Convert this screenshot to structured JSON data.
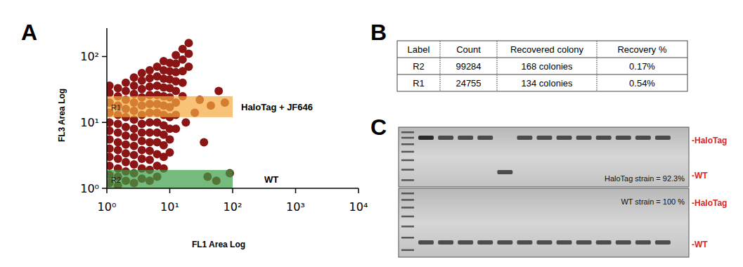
{
  "panel_labels": [
    "A",
    "B",
    "C"
  ],
  "chart_data": {
    "type": "scatter",
    "xlabel": "FL1 Area Log",
    "ylabel": "FL3 Area Log",
    "log": true,
    "color": "#8b1414",
    "xlim": [
      1,
      10000
    ],
    "ylim": [
      1,
      270
    ],
    "xticks": [
      {
        "value": 1,
        "label": "10⁰"
      },
      {
        "value": 10,
        "label": "10¹"
      },
      {
        "value": 100,
        "label": "10²"
      },
      {
        "value": 1000,
        "label": "10³"
      },
      {
        "value": 10000,
        "label": "10⁴"
      }
    ],
    "yticks": [
      {
        "value": 1,
        "label": "10⁰"
      },
      {
        "value": 10,
        "label": "10¹"
      },
      {
        "value": 100,
        "label": "10²"
      }
    ],
    "x": [
      1.1,
      1.1,
      1.1,
      1.1,
      1.1,
      1.1,
      1.1,
      1.1,
      1.1,
      1.1,
      1.1,
      1.1,
      1.5,
      1.5,
      1.5,
      1.5,
      1.5,
      1.5,
      1.5,
      1.5,
      1.5,
      1.5,
      1.5,
      1.5,
      2,
      2,
      2,
      2,
      2,
      2,
      2,
      2,
      2,
      2,
      2,
      2,
      2.7,
      2.7,
      2.7,
      2.7,
      2.7,
      2.7,
      2.7,
      2.7,
      2.7,
      2.7,
      2.7,
      2.7,
      2.7,
      3.6,
      3.6,
      3.6,
      3.6,
      3.6,
      3.6,
      3.6,
      3.6,
      3.6,
      3.6,
      3.6,
      3.6,
      3.6,
      4.8,
      4.8,
      4.8,
      4.8,
      4.8,
      4.8,
      4.8,
      4.8,
      4.8,
      4.8,
      4.8,
      4.8,
      4.8,
      6.3,
      6.3,
      6.3,
      6.3,
      6.3,
      6.3,
      6.3,
      6.3,
      6.3,
      6.3,
      6.3,
      6.3,
      8,
      8,
      8,
      8,
      8,
      8,
      8,
      8,
      8,
      8,
      8,
      8,
      10,
      10,
      10,
      10,
      10,
      10,
      10,
      10,
      10,
      10,
      12.5,
      12.5,
      12.5,
      12.5,
      12.5,
      12.5,
      12.5,
      12.5,
      16,
      16,
      16,
      16,
      16,
      20,
      20,
      20,
      30,
      45,
      60,
      75,
      25,
      40,
      55,
      90,
      35,
      18
    ],
    "y": [
      1.2,
      1.6,
      2.2,
      3,
      4,
      5.5,
      7.5,
      10,
      14,
      20,
      28,
      36,
      1.1,
      1.5,
      2,
      2.8,
      3.8,
      5,
      7,
      9.5,
      13,
      18,
      25,
      33,
      1.3,
      1.8,
      2.5,
      3.4,
      4.6,
      6.3,
      8.5,
      12,
      16,
      22,
      30,
      40,
      1.2,
      1.7,
      2.3,
      3.2,
      4.4,
      6,
      8,
      11,
      15,
      20,
      27,
      36,
      48,
      1.4,
      2,
      2.8,
      3.8,
      5.2,
      7,
      9.5,
      13,
      18,
      24,
      32,
      43,
      56,
      1.3,
      1.9,
      2.7,
      3.7,
      5,
      7,
      10,
      14,
      19,
      26,
      35,
      47,
      62,
      1.5,
      2.2,
      3.3,
      5,
      7,
      10,
      14,
      19,
      26,
      36,
      50,
      70,
      2,
      3,
      4.5,
      6.5,
      9,
      13,
      18,
      25,
      34,
      46,
      62,
      85,
      3.5,
      5.5,
      8,
      12,
      17,
      24,
      33,
      45,
      60,
      80,
      8,
      13,
      20,
      30,
      42,
      58,
      78,
      105,
      25,
      40,
      60,
      90,
      130,
      70,
      110,
      160,
      22,
      18,
      30,
      20,
      14,
      1.5,
      1.3,
      1.7,
      5,
      10
    ],
    "gates": [
      {
        "label": "R1",
        "annotation": "HaloTag + JF646",
        "xlim": [
          1,
          100
        ],
        "ylim": [
          12,
          25
        ],
        "color": "#f5a93c"
      },
      {
        "label": "R2",
        "annotation": "WT",
        "xlim": [
          1,
          100
        ],
        "ylim": [
          1,
          1.9
        ],
        "color": "#3a9e47"
      }
    ]
  },
  "table": {
    "header": [
      "Label",
      "Count",
      "Recovered colony",
      "Recovery %"
    ],
    "rows": [
      [
        "R2",
        "99284",
        "168 colonies",
        "0.17%"
      ],
      [
        "R1",
        "24755",
        "134 colonies",
        "0.54%"
      ]
    ]
  },
  "gels": [
    {
      "band_labels": [
        "-HaloTag",
        "-WT"
      ],
      "lanes": [
        0,
        0,
        0,
        0,
        1,
        0,
        0,
        0,
        0,
        0,
        0,
        0,
        0
      ],
      "note": "HaloTag strain = 92.3%"
    },
    {
      "band_labels": [
        "-HaloTag",
        "-WT"
      ],
      "lanes": [
        1,
        1,
        1,
        1,
        1,
        1,
        1,
        1,
        1,
        1,
        1,
        1,
        1
      ],
      "note": "WT strain = 100 %"
    }
  ]
}
